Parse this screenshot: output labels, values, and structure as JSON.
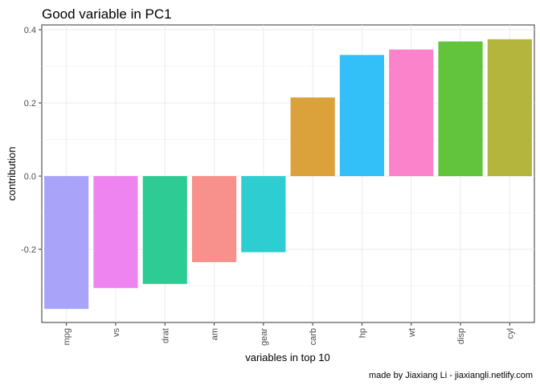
{
  "chart_data": {
    "type": "bar",
    "title": "Good variable in PC1",
    "xlabel": "variables in top 10",
    "ylabel": "contribution",
    "caption": "made by Jiaxiang Li - jiaxiangli.netlify.com",
    "categories": [
      "mpg",
      "vs",
      "drat",
      "am",
      "gear",
      "carb",
      "hp",
      "wt",
      "disp",
      "cyl"
    ],
    "values": [
      -0.363,
      -0.306,
      -0.295,
      -0.235,
      -0.208,
      0.215,
      0.331,
      0.346,
      0.368,
      0.374
    ],
    "colors": [
      "#a9a4f9",
      "#ee84ef",
      "#2fcb94",
      "#f8908b",
      "#2ecdd1",
      "#dba23b",
      "#33bff8",
      "#fb83cc",
      "#62c43c",
      "#b3b53c"
    ],
    "yticks": [
      -0.2,
      0.0,
      0.2,
      0.4
    ],
    "ytick_labels": [
      "-0.2",
      "0.0",
      "0.2",
      "0.4"
    ],
    "ylim": [
      -0.4,
      0.4
    ],
    "grid": true,
    "legend": "none"
  }
}
